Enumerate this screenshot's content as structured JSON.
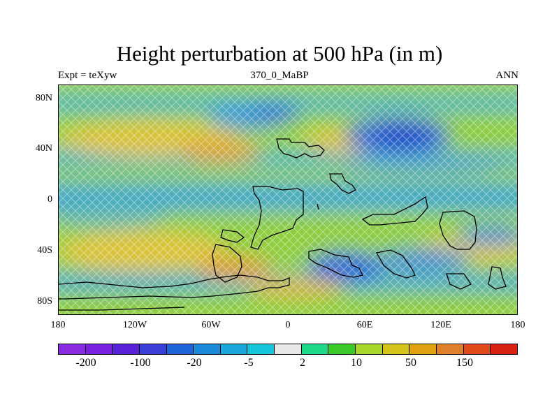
{
  "title": "Height perturbation at 500 hPa (in m)",
  "subtitle_left": "Expt = teXyw",
  "subtitle_center": "370_0_MaBP",
  "subtitle_right": "ANN",
  "map": {
    "y_tick_labels": [
      "80N",
      "40N",
      "0",
      "40S",
      "80S"
    ],
    "x_tick_labels": [
      "180",
      "120W",
      "60W",
      "0",
      "60E",
      "120E",
      "180"
    ],
    "fill_pattern": "cross-hatch",
    "coastline_color": "#000000"
  },
  "colorbar": {
    "colors": [
      "#8A2BE2",
      "#7B20E0",
      "#5A22D8",
      "#3B3FD8",
      "#1E63D8",
      "#1A8AD9",
      "#1AA8DB",
      "#17C5DB",
      "#E8E8E8",
      "#1FD98A",
      "#3ACB2A",
      "#A8D62A",
      "#D4C41A",
      "#E0A20E",
      "#E0802A",
      "#E04A1A",
      "#D82010"
    ],
    "labels": [
      "-200",
      "-100",
      "-20",
      "-5",
      "2",
      "10",
      "50",
      "150"
    ]
  }
}
